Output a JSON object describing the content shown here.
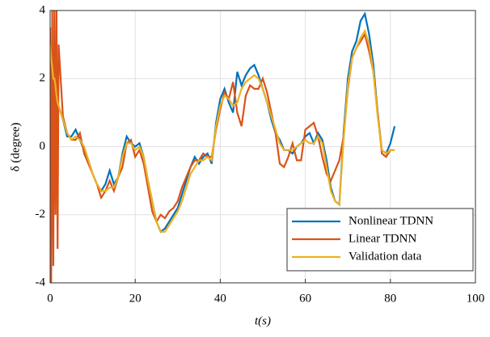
{
  "chart_data": {
    "type": "line",
    "x_label": "t(s)",
    "y_label": "δ (degree)",
    "x": [
      0,
      0.25,
      0.5,
      0.75,
      1,
      1.25,
      1.5,
      1.75,
      2,
      3,
      4,
      5,
      6,
      7,
      8,
      9,
      10,
      11,
      12,
      13,
      14,
      15,
      16,
      17,
      18,
      19,
      20,
      21,
      22,
      23,
      24,
      25,
      26,
      27,
      28,
      29,
      30,
      31,
      32,
      33,
      34,
      35,
      36,
      37,
      38,
      39,
      40,
      41,
      42,
      43,
      44,
      45,
      46,
      47,
      48,
      49,
      50,
      51,
      52,
      53,
      54,
      55,
      56,
      57,
      58,
      59,
      60,
      61,
      62,
      63,
      64,
      65,
      66,
      67,
      68,
      69,
      70,
      71,
      72,
      73,
      74,
      75,
      76,
      77,
      78,
      79,
      80,
      81
    ],
    "series": [
      {
        "name": "Nonlinear TDNN",
        "color": "#0072bd",
        "values": [
          3.0,
          2.5,
          2.2,
          2.0,
          1.9,
          1.7,
          1.5,
          1.3,
          1.2,
          0.8,
          0.3,
          0.3,
          0.5,
          0.2,
          -0.1,
          -0.4,
          -0.8,
          -1.1,
          -1.3,
          -1.1,
          -0.7,
          -1.1,
          -0.9,
          -0.2,
          0.3,
          0.1,
          0.0,
          0.1,
          -0.3,
          -1.0,
          -1.6,
          -2.2,
          -2.5,
          -2.4,
          -2.2,
          -2.0,
          -1.8,
          -1.4,
          -1.0,
          -0.6,
          -0.3,
          -0.5,
          -0.3,
          -0.2,
          -0.5,
          0.7,
          1.4,
          1.7,
          1.3,
          1.0,
          2.2,
          1.8,
          2.1,
          2.3,
          2.4,
          2.1,
          1.7,
          1.3,
          0.8,
          0.4,
          0.2,
          -0.1,
          -0.1,
          -0.2,
          0.0,
          0.1,
          0.3,
          0.4,
          0.1,
          0.4,
          0.2,
          -0.4,
          -1.2,
          -1.6,
          -1.7,
          0.4,
          2.0,
          2.8,
          3.1,
          3.7,
          3.9,
          3.3,
          2.4,
          1.0,
          -0.1,
          -0.2,
          0.1,
          0.6
        ]
      },
      {
        "name": "Linear TDNN",
        "color": "#d95319",
        "values": [
          3.5,
          -4.0,
          4.0,
          -3.5,
          4.0,
          -2.0,
          4.0,
          -3.0,
          3.0,
          0.9,
          0.4,
          0.2,
          0.2,
          0.4,
          -0.2,
          -0.5,
          -0.8,
          -1.1,
          -1.5,
          -1.3,
          -1.0,
          -1.3,
          -0.9,
          -0.6,
          0.1,
          0.2,
          -0.3,
          -0.1,
          -0.5,
          -1.2,
          -1.9,
          -2.2,
          -2.0,
          -2.1,
          -1.9,
          -1.8,
          -1.6,
          -1.2,
          -0.9,
          -0.6,
          -0.4,
          -0.4,
          -0.2,
          -0.3,
          -0.3,
          0.5,
          1.1,
          1.6,
          1.4,
          1.9,
          1.0,
          0.6,
          1.5,
          1.8,
          1.7,
          1.7,
          2.0,
          1.6,
          1.0,
          0.4,
          -0.5,
          -0.6,
          -0.3,
          0.1,
          -0.4,
          -0.4,
          0.5,
          0.6,
          0.7,
          0.3,
          -0.3,
          -0.8,
          -1.0,
          -0.7,
          -0.4,
          0.3,
          1.7,
          2.6,
          2.9,
          3.1,
          3.3,
          2.8,
          2.2,
          1.0,
          -0.2,
          -0.3,
          -0.1,
          -0.1
        ]
      },
      {
        "name": "Validation data",
        "color": "#edb120",
        "values": [
          3.0,
          2.6,
          2.3,
          2.0,
          2.0,
          1.8,
          1.5,
          1.3,
          1.2,
          0.8,
          0.4,
          0.2,
          0.3,
          0.2,
          0.0,
          -0.4,
          -0.8,
          -1.1,
          -1.3,
          -1.3,
          -1.2,
          -1.2,
          -0.9,
          -0.3,
          0.1,
          0.1,
          -0.1,
          0.0,
          -0.3,
          -1.0,
          -1.6,
          -2.2,
          -2.5,
          -2.5,
          -2.3,
          -2.1,
          -1.9,
          -1.6,
          -1.2,
          -0.8,
          -0.6,
          -0.4,
          -0.4,
          -0.3,
          -0.4,
          0.6,
          1.2,
          1.5,
          1.4,
          1.2,
          1.3,
          1.7,
          1.9,
          2.0,
          2.1,
          2.0,
          1.7,
          1.3,
          0.9,
          0.5,
          0.1,
          -0.1,
          -0.1,
          -0.1,
          0.0,
          0.1,
          0.2,
          0.1,
          0.1,
          0.3,
          0.1,
          -0.6,
          -1.3,
          -1.6,
          -1.7,
          0.2,
          1.8,
          2.6,
          2.9,
          3.2,
          3.4,
          3.0,
          2.2,
          0.9,
          -0.1,
          -0.2,
          -0.1,
          -0.1
        ]
      }
    ],
    "xlim": [
      0,
      100
    ],
    "ylim": [
      -4,
      4
    ],
    "xticks": [
      0,
      20,
      40,
      60,
      80,
      100
    ],
    "yticks": [
      -4,
      -2,
      0,
      2,
      4
    ],
    "grid": true,
    "legend": "lower right"
  }
}
